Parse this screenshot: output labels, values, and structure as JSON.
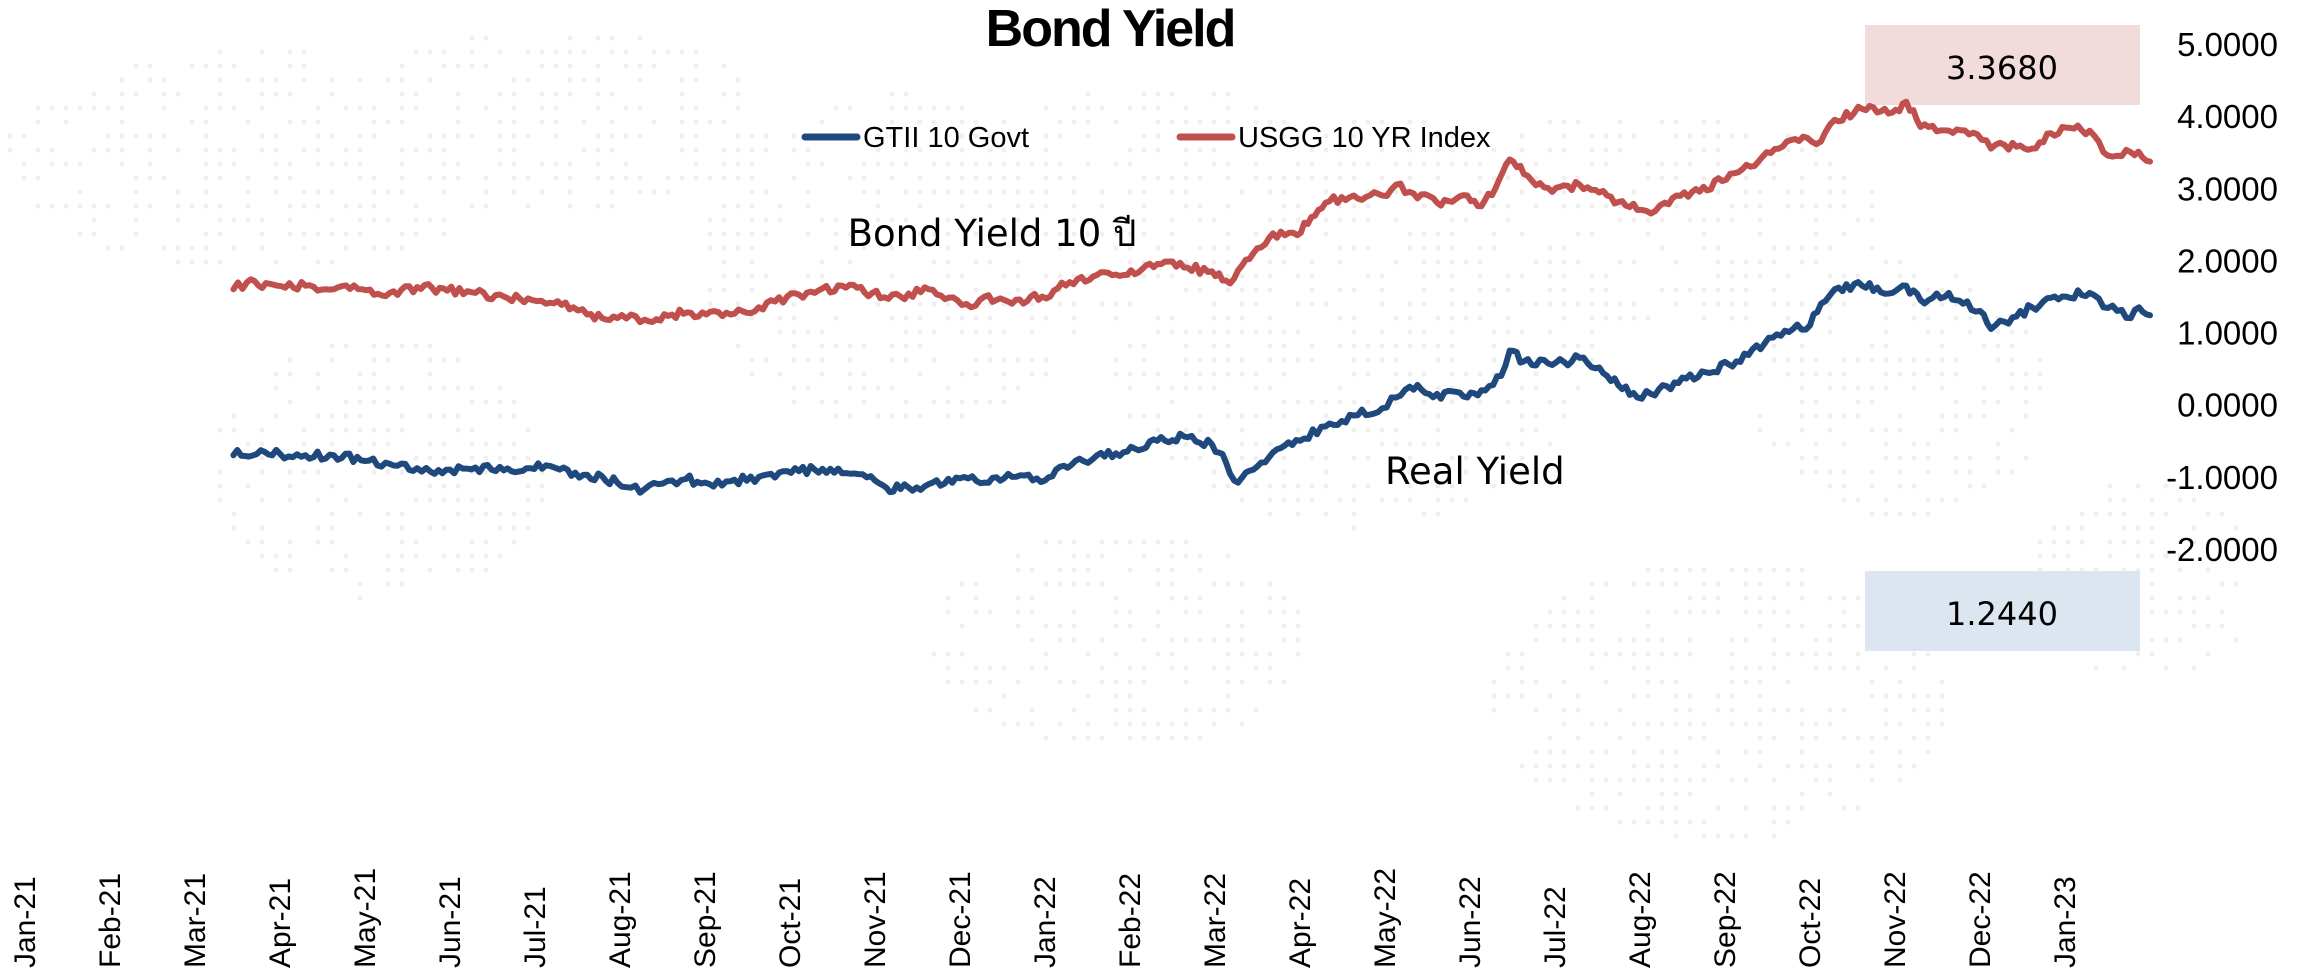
{
  "chart_data": {
    "type": "line",
    "title": "Bond Yield",
    "x_tick_labels": [
      "Jan-21",
      "Feb-21",
      "Mar-21",
      "Apr-21",
      "May-21",
      "Jun-21",
      "Jul-21",
      "Aug-21",
      "Sep-21",
      "Oct-21",
      "Nov-21",
      "Dec-21",
      "Jan-22",
      "Feb-22",
      "Mar-22",
      "Apr-22",
      "May-22",
      "Jun-22",
      "Jul-22",
      "Aug-22",
      "Sep-22",
      "Oct-22",
      "Nov-22",
      "Dec-22",
      "Jan-23"
    ],
    "y_tick_labels": [
      "5.0000",
      "4.0000",
      "3.0000",
      "2.0000",
      "1.0000",
      "0.0000",
      "-1.0000",
      "-2.0000"
    ],
    "ylim": [
      -2,
      5
    ],
    "xlim": [
      "2021-01",
      "2023-02"
    ],
    "y_axis_side": "right",
    "grid": false,
    "legend_position": "top-center",
    "series": [
      {
        "name": "GTII 10 Govt",
        "color": "#1f497d",
        "points": [
          [
            "2021-03-15",
            -0.7
          ],
          [
            "2021-03-25",
            -0.63
          ],
          [
            "2021-04-01",
            -0.68
          ],
          [
            "2021-04-10",
            -0.7
          ],
          [
            "2021-04-20",
            -0.7
          ],
          [
            "2021-05-01",
            -0.78
          ],
          [
            "2021-05-10",
            -0.82
          ],
          [
            "2021-05-20",
            -0.88
          ],
          [
            "2021-05-25",
            -0.93
          ],
          [
            "2021-06-01",
            -0.9
          ],
          [
            "2021-06-10",
            -0.87
          ],
          [
            "2021-06-20",
            -0.91
          ],
          [
            "2021-06-28",
            -0.88
          ],
          [
            "2021-07-05",
            -0.84
          ],
          [
            "2021-07-10",
            -0.9
          ],
          [
            "2021-07-20",
            -0.97
          ],
          [
            "2021-07-31",
            -1.08
          ],
          [
            "2021-08-05",
            -1.15
          ],
          [
            "2021-08-10",
            -1.17
          ],
          [
            "2021-08-15",
            -1.1
          ],
          [
            "2021-08-20",
            -1.05
          ],
          [
            "2021-08-25",
            -1.03
          ],
          [
            "2021-09-01",
            -1.08
          ],
          [
            "2021-09-10",
            -1.06
          ],
          [
            "2021-09-20",
            -1.0
          ],
          [
            "2021-09-30",
            -0.92
          ],
          [
            "2021-10-10",
            -0.9
          ],
          [
            "2021-10-20",
            -0.95
          ],
          [
            "2021-11-01",
            -1.05
          ],
          [
            "2021-11-05",
            -1.15
          ],
          [
            "2021-11-10",
            -1.17
          ],
          [
            "2021-11-20",
            -1.1
          ],
          [
            "2021-12-01",
            -1.02
          ],
          [
            "2021-12-10",
            -1.08
          ],
          [
            "2021-12-20",
            -1.0
          ],
          [
            "2022-01-01",
            -1.05
          ],
          [
            "2022-01-05",
            -0.9
          ],
          [
            "2022-01-15",
            -0.78
          ],
          [
            "2022-01-20",
            -0.7
          ],
          [
            "2022-01-31",
            -0.65
          ],
          [
            "2022-02-10",
            -0.5
          ],
          [
            "2022-02-20",
            -0.45
          ],
          [
            "2022-02-28",
            -0.55
          ],
          [
            "2022-03-05",
            -0.8
          ],
          [
            "2022-03-08",
            -1.05
          ],
          [
            "2022-03-15",
            -0.9
          ],
          [
            "2022-03-25",
            -0.6
          ],
          [
            "2022-04-01",
            -0.5
          ],
          [
            "2022-04-10",
            -0.3
          ],
          [
            "2022-04-20",
            -0.15
          ],
          [
            "2022-04-30",
            -0.05
          ],
          [
            "2022-05-05",
            0.1
          ],
          [
            "2022-05-10",
            0.25
          ],
          [
            "2022-05-20",
            0.15
          ],
          [
            "2022-05-31",
            0.1
          ],
          [
            "2022-06-05",
            0.2
          ],
          [
            "2022-06-12",
            0.4
          ],
          [
            "2022-06-15",
            0.75
          ],
          [
            "2022-06-20",
            0.6
          ],
          [
            "2022-06-30",
            0.55
          ],
          [
            "2022-07-10",
            0.65
          ],
          [
            "2022-07-20",
            0.4
          ],
          [
            "2022-07-31",
            0.1
          ],
          [
            "2022-08-05",
            0.15
          ],
          [
            "2022-08-15",
            0.3
          ],
          [
            "2022-08-25",
            0.45
          ],
          [
            "2022-09-05",
            0.6
          ],
          [
            "2022-09-15",
            0.85
          ],
          [
            "2022-09-25",
            1.05
          ],
          [
            "2022-10-01",
            1.1
          ],
          [
            "2022-10-05",
            1.4
          ],
          [
            "2022-10-10",
            1.6
          ],
          [
            "2022-10-20",
            1.65
          ],
          [
            "2022-10-31",
            1.55
          ],
          [
            "2022-11-05",
            1.65
          ],
          [
            "2022-11-10",
            1.45
          ],
          [
            "2022-11-20",
            1.55
          ],
          [
            "2022-11-25",
            1.4
          ],
          [
            "2022-12-01",
            1.3
          ],
          [
            "2022-12-05",
            1.05
          ],
          [
            "2022-12-10",
            1.15
          ],
          [
            "2022-12-20",
            1.35
          ],
          [
            "2022-12-31",
            1.5
          ],
          [
            "2023-01-10",
            1.55
          ],
          [
            "2023-01-15",
            1.35
          ],
          [
            "2023-01-20",
            1.3
          ],
          [
            "2023-01-25",
            1.2
          ],
          [
            "2023-01-28",
            1.35
          ],
          [
            "2023-02-01",
            1.24
          ]
        ],
        "last_value_label": "1.2440",
        "label_box_color": "#dce6f1"
      },
      {
        "name": "USGG 10 YR Index",
        "color": "#c0504d",
        "points": [
          [
            "2021-03-15",
            1.6
          ],
          [
            "2021-03-20",
            1.7
          ],
          [
            "2021-03-31",
            1.65
          ],
          [
            "2021-04-10",
            1.65
          ],
          [
            "2021-04-20",
            1.6
          ],
          [
            "2021-04-30",
            1.6
          ],
          [
            "2021-05-10",
            1.55
          ],
          [
            "2021-05-20",
            1.63
          ],
          [
            "2021-05-31",
            1.58
          ],
          [
            "2021-06-10",
            1.55
          ],
          [
            "2021-06-20",
            1.5
          ],
          [
            "2021-06-30",
            1.45
          ],
          [
            "2021-07-05",
            1.4
          ],
          [
            "2021-07-15",
            1.35
          ],
          [
            "2021-07-20",
            1.25
          ],
          [
            "2021-07-31",
            1.2
          ],
          [
            "2021-08-05",
            1.25
          ],
          [
            "2021-08-10",
            1.18
          ],
          [
            "2021-08-20",
            1.25
          ],
          [
            "2021-08-31",
            1.28
          ],
          [
            "2021-09-10",
            1.25
          ],
          [
            "2021-09-20",
            1.35
          ],
          [
            "2021-09-30",
            1.5
          ],
          [
            "2021-10-10",
            1.55
          ],
          [
            "2021-10-20",
            1.65
          ],
          [
            "2021-10-31",
            1.55
          ],
          [
            "2021-11-10",
            1.5
          ],
          [
            "2021-11-20",
            1.6
          ],
          [
            "2021-11-30",
            1.45
          ],
          [
            "2021-12-05",
            1.35
          ],
          [
            "2021-12-10",
            1.5
          ],
          [
            "2021-12-20",
            1.4
          ],
          [
            "2021-12-31",
            1.5
          ],
          [
            "2022-01-10",
            1.7
          ],
          [
            "2022-01-20",
            1.8
          ],
          [
            "2022-01-31",
            1.8
          ],
          [
            "2022-02-10",
            1.95
          ],
          [
            "2022-02-20",
            1.9
          ],
          [
            "2022-02-28",
            1.85
          ],
          [
            "2022-03-05",
            1.72
          ],
          [
            "2022-03-08",
            1.75
          ],
          [
            "2022-03-15",
            2.1
          ],
          [
            "2022-03-25",
            2.4
          ],
          [
            "2022-03-31",
            2.35
          ],
          [
            "2022-04-05",
            2.6
          ],
          [
            "2022-04-10",
            2.8
          ],
          [
            "2022-04-20",
            2.9
          ],
          [
            "2022-04-30",
            2.9
          ],
          [
            "2022-05-05",
            3.05
          ],
          [
            "2022-05-10",
            2.95
          ],
          [
            "2022-05-20",
            2.8
          ],
          [
            "2022-05-31",
            2.9
          ],
          [
            "2022-06-05",
            2.75
          ],
          [
            "2022-06-10",
            3.0
          ],
          [
            "2022-06-15",
            3.4
          ],
          [
            "2022-06-20",
            3.2
          ],
          [
            "2022-06-30",
            2.95
          ],
          [
            "2022-07-10",
            3.05
          ],
          [
            "2022-07-20",
            2.9
          ],
          [
            "2022-07-31",
            2.7
          ],
          [
            "2022-08-05",
            2.65
          ],
          [
            "2022-08-10",
            2.8
          ],
          [
            "2022-08-20",
            2.95
          ],
          [
            "2022-08-31",
            3.1
          ],
          [
            "2022-09-10",
            3.3
          ],
          [
            "2022-09-20",
            3.55
          ],
          [
            "2022-09-30",
            3.7
          ],
          [
            "2022-10-05",
            3.65
          ],
          [
            "2022-10-10",
            3.95
          ],
          [
            "2022-10-20",
            4.1
          ],
          [
            "2022-10-31",
            4.05
          ],
          [
            "2022-11-05",
            4.2
          ],
          [
            "2022-11-10",
            3.85
          ],
          [
            "2022-11-20",
            3.8
          ],
          [
            "2022-11-30",
            3.75
          ],
          [
            "2022-12-05",
            3.55
          ],
          [
            "2022-12-10",
            3.6
          ],
          [
            "2022-12-20",
            3.55
          ],
          [
            "2022-12-31",
            3.85
          ],
          [
            "2023-01-10",
            3.8
          ],
          [
            "2023-01-15",
            3.5
          ],
          [
            "2023-01-20",
            3.45
          ],
          [
            "2023-01-25",
            3.5
          ],
          [
            "2023-02-01",
            3.37
          ]
        ],
        "last_value_label": "3.3680",
        "label_box_color": "#f2dcdb"
      }
    ],
    "annotations": [
      {
        "text": "Bond Yield 10  ปี",
        "x": "2021-10-22",
        "y": 2.2
      },
      {
        "text": "Real Yield",
        "x": "2022-05-01",
        "y": -1.1
      }
    ]
  }
}
